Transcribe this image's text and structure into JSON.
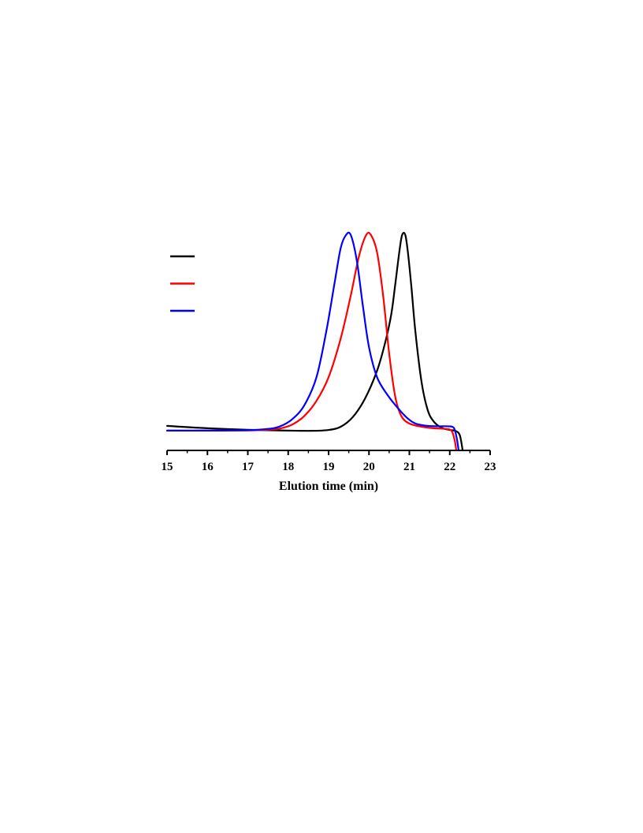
{
  "chart_data": {
    "type": "line",
    "title": "",
    "xlabel": "Elution time (min)",
    "ylabel": "",
    "xlim": [
      15,
      23
    ],
    "ylim": [
      0,
      1.1
    ],
    "x_ticks": [
      "15",
      "16",
      "17",
      "18",
      "19",
      "20",
      "21",
      "22",
      "23"
    ],
    "grid": false,
    "legend_position": "top-left",
    "series": [
      {
        "color": "#000000",
        "points": [
          [
            15.0,
            0.114
          ],
          [
            16.0,
            0.103
          ],
          [
            17.0,
            0.096
          ],
          [
            18.0,
            0.092
          ],
          [
            18.6,
            0.091
          ],
          [
            19.0,
            0.095
          ],
          [
            19.3,
            0.11
          ],
          [
            19.6,
            0.155
          ],
          [
            19.9,
            0.24
          ],
          [
            20.2,
            0.37
          ],
          [
            20.4,
            0.5
          ],
          [
            20.55,
            0.63
          ],
          [
            20.65,
            0.77
          ],
          [
            20.75,
            0.92
          ],
          [
            20.82,
            1.0
          ],
          [
            20.9,
            1.0
          ],
          [
            20.97,
            0.91
          ],
          [
            21.05,
            0.76
          ],
          [
            21.15,
            0.55
          ],
          [
            21.3,
            0.32
          ],
          [
            21.45,
            0.19
          ],
          [
            21.6,
            0.135
          ],
          [
            21.8,
            0.105
          ],
          [
            22.0,
            0.095
          ],
          [
            22.15,
            0.09
          ],
          [
            22.25,
            0.07
          ],
          [
            22.32,
            0.0
          ]
        ]
      },
      {
        "color": "#ff0000",
        "points": [
          [
            15.0,
            0.092
          ],
          [
            16.0,
            0.092
          ],
          [
            17.0,
            0.093
          ],
          [
            17.5,
            0.096
          ],
          [
            17.8,
            0.102
          ],
          [
            18.1,
            0.12
          ],
          [
            18.4,
            0.16
          ],
          [
            18.7,
            0.23
          ],
          [
            19.0,
            0.34
          ],
          [
            19.3,
            0.52
          ],
          [
            19.55,
            0.72
          ],
          [
            19.75,
            0.9
          ],
          [
            19.93,
            1.0
          ],
          [
            20.05,
            1.0
          ],
          [
            20.2,
            0.92
          ],
          [
            20.35,
            0.72
          ],
          [
            20.5,
            0.45
          ],
          [
            20.65,
            0.25
          ],
          [
            20.8,
            0.16
          ],
          [
            21.0,
            0.125
          ],
          [
            21.3,
            0.11
          ],
          [
            21.6,
            0.103
          ],
          [
            21.9,
            0.1
          ],
          [
            22.05,
            0.09
          ],
          [
            22.13,
            0.04
          ],
          [
            22.16,
            0.0
          ]
        ]
      },
      {
        "color": "#0000ff",
        "points": [
          [
            15.0,
            0.092
          ],
          [
            16.0,
            0.092
          ],
          [
            17.0,
            0.094
          ],
          [
            17.5,
            0.1
          ],
          [
            17.8,
            0.112
          ],
          [
            18.1,
            0.145
          ],
          [
            18.4,
            0.21
          ],
          [
            18.7,
            0.34
          ],
          [
            18.95,
            0.56
          ],
          [
            19.15,
            0.78
          ],
          [
            19.3,
            0.94
          ],
          [
            19.43,
            1.0
          ],
          [
            19.55,
            1.0
          ],
          [
            19.7,
            0.88
          ],
          [
            19.85,
            0.67
          ],
          [
            20.0,
            0.48
          ],
          [
            20.2,
            0.34
          ],
          [
            20.45,
            0.26
          ],
          [
            20.7,
            0.2
          ],
          [
            20.95,
            0.15
          ],
          [
            21.15,
            0.125
          ],
          [
            21.4,
            0.115
          ],
          [
            21.7,
            0.112
          ],
          [
            21.95,
            0.112
          ],
          [
            22.1,
            0.105
          ],
          [
            22.17,
            0.06
          ],
          [
            22.22,
            0.0
          ]
        ]
      }
    ]
  }
}
